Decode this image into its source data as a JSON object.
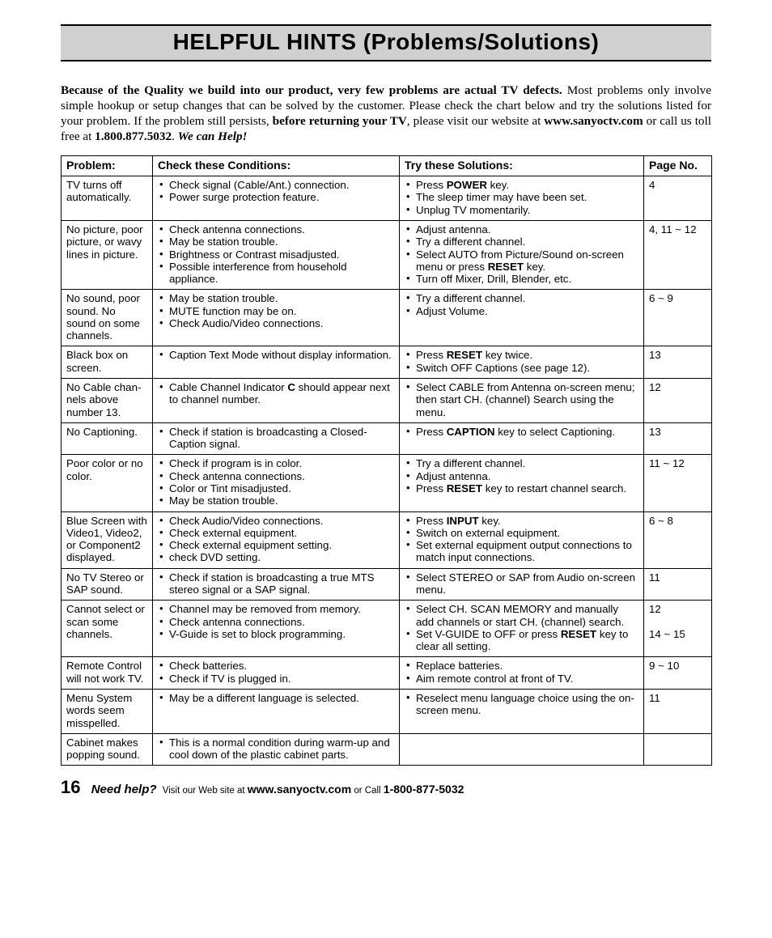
{
  "title": "HELPFUL HINTS (Problems/Solutions)",
  "intro": {
    "lead_bold": "Because of the Quality we build into our product, very few problems are actual TV defects.",
    "body1": " Most problems only involve simple hookup or setup changes that can be solved by the customer. Please check the chart below and try the solutions listed for your problem. If the problem still persists, ",
    "mid_bold": "before returning your TV",
    "body2": ", please visit our website at ",
    "url_bold": "www.sanyoctv.com",
    "body3": " or call us toll free at ",
    "phone_bold": "1.800.877.5032",
    "period": ". ",
    "tail_bi": "We can Help!"
  },
  "table": {
    "headers": {
      "problem": "Problem:",
      "conditions": "Check these Conditions:",
      "solutions": "Try these Solutions:",
      "page": "Page No."
    },
    "rows": [
      {
        "problem": "TV turns off automatically.",
        "conditions_html": "<ul class='cell'><li>Check signal (Cable/Ant.) connection.</li><li>Power surge protection feature.</li></ul>",
        "solutions_html": "<ul class='cell'><li>Press <span class='kb'>POWER</span> key.</li><li>The sleep timer may have been set.</li><li>Unplug TV momentarily.</li></ul>",
        "page": "4"
      },
      {
        "problem": "No picture, poor picture, or wavy lines in picture.",
        "conditions_html": "<ul class='cell'><li>Check antenna connections.</li><li>May be station trouble.</li><li>Brightness or Contrast misadjusted.</li><li>Possible interference from household appliance.</li></ul>",
        "solutions_html": "<ul class='cell'><li>Adjust antenna.</li><li>Try a different channel.</li><li>Select AUTO from Picture/Sound on-screen menu or press <span class='kb'>RESET</span> key.</li><li>Turn off Mixer, Drill, Blender, etc.</li></ul>",
        "page": "4, 11 ~ 12"
      },
      {
        "problem": "No sound, poor sound. No sound on some channels.",
        "conditions_html": "<ul class='cell'><li>May be station trouble.</li><li>MUTE function may be on.</li><li>Check Audio/Video connections.</li></ul>",
        "solutions_html": "<ul class='cell'><li>Try a different channel.</li><li>Adjust Volume.</li></ul>",
        "page": "6 ~ 9"
      },
      {
        "problem": "Black box on screen.",
        "conditions_html": "<ul class='cell'><li>Caption Text Mode without display information.</li></ul>",
        "solutions_html": "<ul class='cell'><li>Press <span class='kb'>RESET</span> key twice.</li><li>Switch OFF Captions (see page 12).</li></ul>",
        "page": "13"
      },
      {
        "problem": "No Cable chan-nels above number 13.",
        "conditions_html": "<ul class='cell'><li>Cable Channel Indicator <span class='cb'>C</span> should appear next to channel number.</li></ul>",
        "solutions_html": "<ul class='cell'><li>Select CABLE from Antenna on-screen menu; then start CH. (channel) Search using the menu.</li></ul>",
        "page": "12"
      },
      {
        "problem": "No Captioning.",
        "conditions_html": "<ul class='cell'><li>Check if station is broadcasting a Closed-Caption signal.</li></ul>",
        "solutions_html": "<ul class='cell'><li>Press <span class='kb'>CAPTION</span> key to select Captioning.</li></ul>",
        "page": "13"
      },
      {
        "problem": "Poor color or no color.",
        "conditions_html": "<ul class='cell'><li>Check if program is in color.</li><li>Check antenna connections.</li><li>Color or Tint misadjusted.</li><li>May be station trouble.</li></ul>",
        "solutions_html": "<ul class='cell'><li>Try a different channel.</li><li>Adjust antenna.</li><li>Press <span class='kb'>RESET</span> key to restart channel search.</li></ul>",
        "page": "11 ~ 12"
      },
      {
        "problem": "Blue Screen with Video1, Video2, or Component2 displayed.",
        "conditions_html": "<ul class='cell'><li>Check Audio/Video connections.</li><li>Check external equipment.</li><li>Check external equipment setting.</li><li>check DVD setting.</li></ul>",
        "solutions_html": "<ul class='cell'><li>Press <span class='kb'>INPUT</span> key.</li><li>Switch on external equipment.</li><li>Set external equipment output connections to match input connections.</li></ul>",
        "page": "6 ~ 8"
      },
      {
        "problem": "No TV Stereo or SAP sound.",
        "conditions_html": "<ul class='cell'><li>Check if station is broadcasting a true MTS stereo signal or a SAP signal.</li></ul>",
        "solutions_html": "<ul class='cell'><li>Select STEREO or SAP from Audio on-screen menu.</li></ul>",
        "page": "11"
      },
      {
        "problem": "Cannot select or scan some channels.",
        "conditions_html": "<ul class='cell'><li>Channel may be removed from memory.</li><li>Check antenna connections.</li><li>V-Guide is set to block programming.</li></ul>",
        "solutions_html": "<ul class='cell'><li>Select CH. SCAN MEMORY and manually add channels or start CH. (channel) search.</li><li>Set V-GUIDE to OFF or press <span class='kb'>RESET</span> key to clear all setting.</li></ul>",
        "page": "12<br><br>14 ~ 15"
      },
      {
        "problem": "Remote Control will not work TV.",
        "conditions_html": "<ul class='cell'><li>Check batteries.</li><li>Check if TV is plugged in.</li></ul>",
        "solutions_html": "<ul class='cell'><li>Replace batteries.</li><li>Aim remote control at front of TV.</li></ul>",
        "page": "9 ~ 10"
      },
      {
        "problem": "Menu System words seem misspelled.",
        "conditions_html": "<ul class='cell'><li>May be a different language is selected.</li></ul>",
        "solutions_html": "<ul class='cell'><li>Reselect menu language choice using the on-screen menu.</li></ul>",
        "page": "11"
      },
      {
        "problem": "Cabinet makes popping sound.",
        "conditions_html": "<ul class='cell'><li>This is a normal condition during warm-up and cool down of the plastic cabinet parts.</li></ul>",
        "solutions_html": "",
        "page": ""
      }
    ]
  },
  "footer": {
    "page_number": "16",
    "need_help": "Need help?",
    "text1": " Visit our Web site at ",
    "url": "www.sanyoctv.com",
    "text2": " or Call ",
    "phone": "1-800-877-5032"
  },
  "style": {
    "background_color": "#ffffff",
    "title_bg": "#d0d0d0",
    "border_color": "#000000",
    "body_font": "Arial, Helvetica, sans-serif",
    "intro_font": "Times New Roman, Times, serif"
  }
}
